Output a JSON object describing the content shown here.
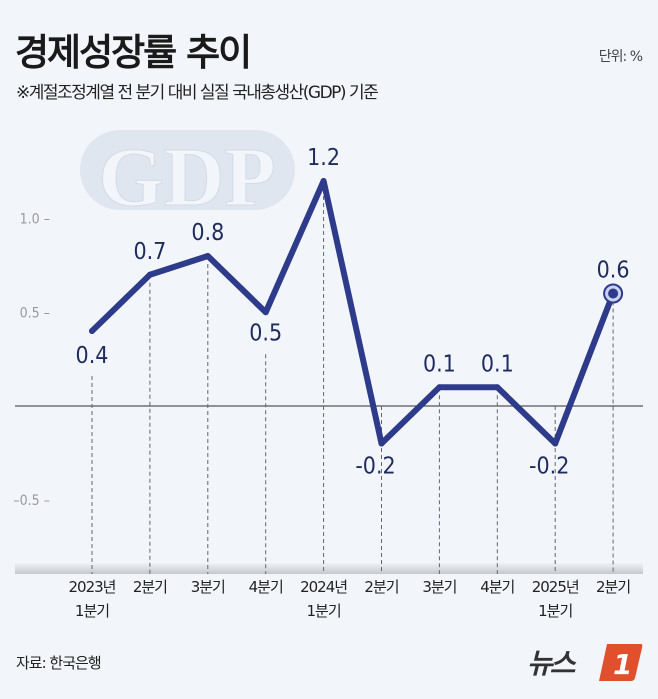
{
  "header": {
    "title": "경제성장률 추이",
    "subtitle": "※계절조정계열 전 분기 대비 실질 국내총생산(GDP) 기준",
    "unit": "단위: %"
  },
  "watermark": "GDP",
  "footer": {
    "source": "자료: 한국은행",
    "logo": "뉴스1"
  },
  "colors": {
    "line": "#2e3a8a",
    "label": "#1f2a5e",
    "logo": "#e0502c"
  },
  "chart_data": {
    "type": "line",
    "categories": [
      [
        "2023년",
        "1분기"
      ],
      [
        "2분기"
      ],
      [
        "3분기"
      ],
      [
        "4분기"
      ],
      [
        "2024년",
        "1분기"
      ],
      [
        "2분기"
      ],
      [
        "3분기"
      ],
      [
        "4분기"
      ],
      [
        "2025년",
        "1분기"
      ],
      [
        "2분기"
      ]
    ],
    "values": [
      0.4,
      0.7,
      0.8,
      0.5,
      1.2,
      -0.2,
      0.1,
      0.1,
      -0.2,
      0.6
    ],
    "value_labels": [
      "0.4",
      "0.7",
      "0.8",
      "0.5",
      "1.2",
      "-0.2",
      "0.1",
      "0.1",
      "-0.2",
      "0.6"
    ],
    "yticks": [
      {
        "v": 1.0,
        "label": "1.0"
      },
      {
        "v": 0.5,
        "label": "0.5"
      },
      {
        "v": -0.5,
        "label": "-0.5"
      }
    ],
    "ylim": [
      -0.9,
      1.3
    ],
    "grid": false,
    "highlight_last": true
  }
}
